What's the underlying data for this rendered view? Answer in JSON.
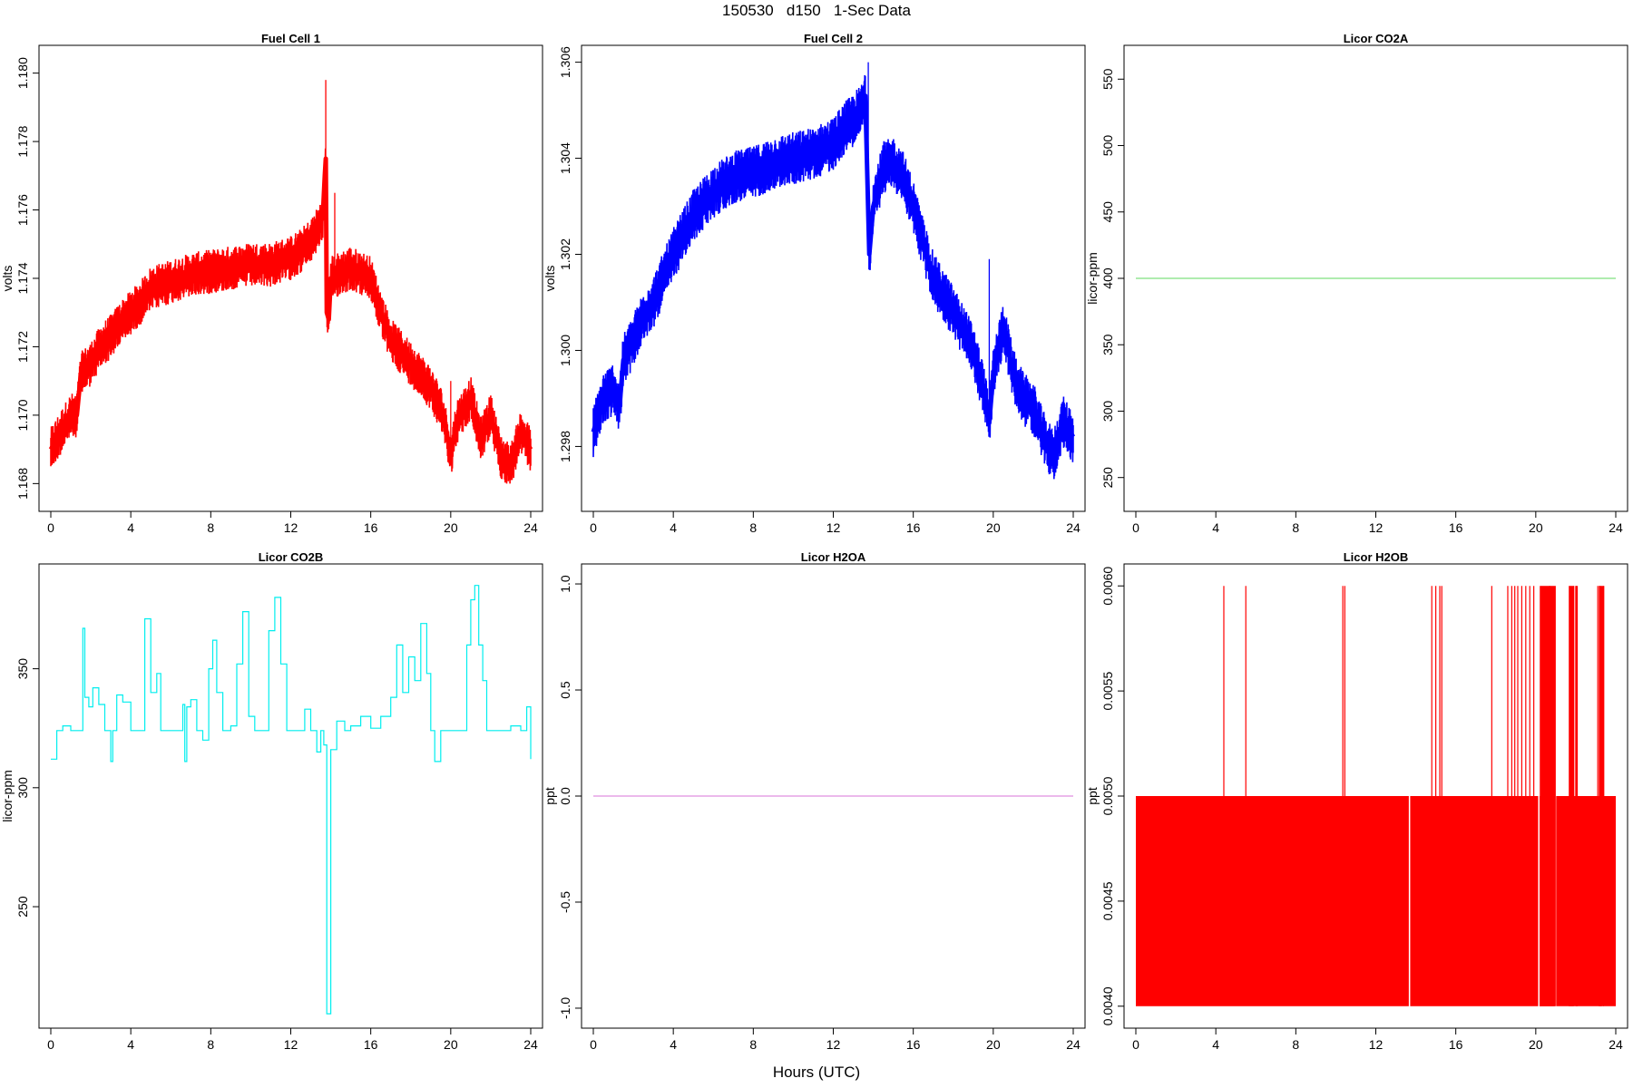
{
  "header": {
    "title": "150530   d150   1-Sec Data"
  },
  "footer": {
    "xlabel": "Hours (UTC)"
  },
  "chart_data": [
    {
      "type": "line",
      "title": "Fuel Cell 1",
      "ylabel": "volts",
      "color": "#ff0000",
      "xlim": [
        0,
        24
      ],
      "ylim": [
        1.1674,
        1.1806
      ],
      "xticks": [
        0,
        4,
        8,
        12,
        16,
        20,
        24
      ],
      "yticks": [
        1.168,
        1.17,
        1.172,
        1.174,
        1.176,
        1.178,
        1.18
      ],
      "ytick_labels": [
        "1.168",
        "1.170",
        "1.172",
        "1.174",
        "1.176",
        "1.178",
        "1.180"
      ],
      "band": 0.00065,
      "x": [
        0,
        0.5,
        1,
        1.3,
        1.5,
        2,
        2.5,
        3,
        3.5,
        4,
        4.5,
        5,
        6,
        7,
        8,
        9,
        10,
        11,
        12,
        12.5,
        13,
        13.4,
        13.6,
        13.7,
        13.75,
        13.8,
        13.9,
        14,
        15,
        16,
        16.5,
        17,
        18,
        19,
        19.5,
        19.8,
        20,
        20.3,
        21,
        21.5,
        22,
        22.5,
        23,
        23.5,
        24
      ],
      "y": [
        1.169,
        1.1695,
        1.17,
        1.17,
        1.1712,
        1.1715,
        1.172,
        1.1723,
        1.1727,
        1.173,
        1.1733,
        1.1737,
        1.1739,
        1.1741,
        1.1742,
        1.1743,
        1.1744,
        1.1744,
        1.1746,
        1.1748,
        1.1751,
        1.1755,
        1.1758,
        1.177,
        1.1775,
        1.173,
        1.1728,
        1.174,
        1.1743,
        1.174,
        1.173,
        1.1722,
        1.1715,
        1.1708,
        1.1702,
        1.1695,
        1.1688,
        1.1698,
        1.1705,
        1.1693,
        1.17,
        1.1688,
        1.1685,
        1.1695,
        1.169
      ],
      "spikes": [
        [
          13.75,
          1.1798
        ],
        [
          14.2,
          1.1765
        ],
        [
          20.0,
          1.171
        ]
      ]
    },
    {
      "type": "line",
      "title": "Fuel Cell 2",
      "ylabel": "volts",
      "color": "#0000ff",
      "xlim": [
        0,
        24
      ],
      "ylim": [
        1.2968,
        1.3062
      ],
      "xticks": [
        0,
        4,
        8,
        12,
        16,
        20,
        24
      ],
      "yticks": [
        1.298,
        1.3,
        1.302,
        1.304,
        1.306
      ],
      "ytick_labels": [
        "1.298",
        "1.300",
        "1.302",
        "1.304",
        "1.306"
      ],
      "band": 0.00055,
      "x": [
        0,
        0.5,
        1,
        1.3,
        1.5,
        2,
        2.5,
        3,
        3.5,
        4,
        4.5,
        5,
        6,
        7,
        8,
        9,
        10,
        11,
        12,
        12.5,
        13,
        13.4,
        13.6,
        13.8,
        14,
        14.5,
        15,
        15.5,
        16,
        16.5,
        17,
        18,
        19,
        19.5,
        19.8,
        20,
        20.5,
        21,
        21.5,
        22,
        22.5,
        23,
        23.5,
        24
      ],
      "y": [
        1.2983,
        1.299,
        1.2992,
        1.2988,
        1.2998,
        1.3002,
        1.3007,
        1.301,
        1.3015,
        1.302,
        1.3024,
        1.3028,
        1.3033,
        1.3036,
        1.3037,
        1.3039,
        1.304,
        1.3041,
        1.3043,
        1.3046,
        1.3048,
        1.305,
        1.3053,
        1.302,
        1.303,
        1.3038,
        1.3039,
        1.3036,
        1.303,
        1.3022,
        1.3015,
        1.3008,
        1.3,
        1.2992,
        1.2985,
        1.2995,
        1.3005,
        1.2995,
        1.299,
        1.2988,
        1.2982,
        1.2978,
        1.2985,
        1.2982
      ],
      "spikes": [
        [
          13.75,
          1.306
        ],
        [
          19.8,
          1.3019
        ]
      ]
    },
    {
      "type": "line",
      "title": "Licor CO2A",
      "ylabel": "licor-ppm",
      "color": "#7fe07f",
      "xlim": [
        0,
        24
      ],
      "ylim": [
        230,
        570
      ],
      "xticks": [
        0,
        4,
        8,
        12,
        16,
        20,
        24
      ],
      "yticks": [
        250,
        300,
        350,
        400,
        450,
        500,
        550
      ],
      "ytick_labels": [
        "250",
        "300",
        "350",
        "400",
        "450",
        "500",
        "550"
      ],
      "band": 0,
      "x": [
        0,
        24
      ],
      "y": [
        400,
        400
      ],
      "spikes": []
    },
    {
      "type": "line",
      "title": "Licor CO2B",
      "ylabel": "licor-ppm",
      "color": "#00eeee",
      "xlim": [
        0,
        24
      ],
      "ylim": [
        202,
        391
      ],
      "xticks": [
        0,
        4,
        8,
        12,
        16,
        20,
        24
      ],
      "yticks": [
        250,
        300,
        350
      ],
      "ytick_labels": [
        "250",
        "300",
        "350"
      ],
      "band": 0,
      "x": [
        0,
        0.3,
        0.6,
        1.0,
        1.5,
        1.6,
        1.7,
        1.9,
        2.1,
        2.4,
        2.7,
        2.9,
        3.0,
        3.1,
        3.3,
        3.6,
        4.0,
        4.5,
        4.7,
        5.0,
        5.3,
        5.5,
        5.8,
        6.2,
        6.6,
        6.7,
        6.8,
        7.0,
        7.3,
        7.6,
        7.9,
        8.1,
        8.3,
        8.6,
        9.0,
        9.3,
        9.6,
        9.9,
        10.2,
        10.5,
        10.9,
        11.2,
        11.5,
        11.8,
        12.1,
        12.4,
        12.7,
        13.0,
        13.3,
        13.5,
        13.65,
        13.8,
        14.0,
        14.3,
        14.7,
        15.0,
        15.5,
        16.0,
        16.5,
        17.0,
        17.3,
        17.6,
        17.9,
        18.2,
        18.5,
        18.8,
        19.0,
        19.2,
        19.5,
        20.0,
        20.5,
        20.8,
        21.0,
        21.2,
        21.4,
        21.6,
        21.8,
        22.0,
        22.5,
        23.0,
        23.5,
        23.8,
        24
      ],
      "y": [
        312,
        324,
        326,
        324,
        324,
        367,
        338,
        334,
        342,
        335,
        324,
        324,
        311,
        324,
        339,
        336,
        324,
        324,
        371,
        340,
        348,
        324,
        324,
        324,
        335,
        311,
        334,
        337,
        324,
        320,
        350,
        362,
        340,
        324,
        326,
        352,
        374,
        330,
        324,
        324,
        366,
        380,
        352,
        324,
        324,
        324,
        333,
        324,
        315,
        324,
        318,
        205,
        316,
        328,
        324,
        326,
        330,
        325,
        330,
        338,
        360,
        340,
        355,
        345,
        369,
        348,
        324,
        311,
        324,
        324,
        324,
        360,
        379,
        385,
        360,
        345,
        324,
        324,
        324,
        326,
        324,
        334,
        312
      ],
      "spikes": []
    },
    {
      "type": "line",
      "title": "Licor H2OA",
      "ylabel": "ppt",
      "color": "#e08fe0",
      "xlim": [
        0,
        24
      ],
      "ylim": [
        -1.06,
        1.06
      ],
      "xticks": [
        0,
        4,
        8,
        12,
        16,
        20,
        24
      ],
      "yticks": [
        -1.0,
        -0.5,
        0.0,
        0.5,
        1.0
      ],
      "ytick_labels": [
        "-1.0",
        "-0.5",
        "0.0",
        "0.5",
        "1.0"
      ],
      "band": 0,
      "x": [
        0,
        24
      ],
      "y": [
        0,
        0
      ],
      "spikes": []
    },
    {
      "type": "bar",
      "title": "Licor H2OB",
      "ylabel": "ppt",
      "color": "#ff0000",
      "xlim": [
        0,
        24
      ],
      "ylim": [
        0.00393,
        0.00607
      ],
      "xticks": [
        0,
        4,
        8,
        12,
        16,
        20,
        24
      ],
      "yticks": [
        0.004,
        0.0045,
        0.005,
        0.0055,
        0.006
      ],
      "ytick_labels": [
        "0.0040",
        "0.0045",
        "0.0050",
        "0.0055",
        "0.0060"
      ],
      "base_value": 0.004,
      "base_top": 0.005,
      "base_range": [
        0,
        24
      ],
      "gaps": [
        [
          13.65,
          13.72
        ],
        [
          20.12,
          20.14
        ],
        [
          20.95,
          21.0
        ],
        [
          23.3,
          23.33
        ]
      ],
      "spike_value": 0.006,
      "spikes_x": [
        4.4,
        5.5,
        10.35,
        10.45,
        14.8,
        15.0,
        15.2,
        15.3,
        17.8,
        18.6,
        18.8,
        18.95,
        19.1,
        19.3,
        19.5,
        19.7,
        19.9,
        20.7,
        21.9,
        22.0,
        23.1,
        23.2,
        23.4
      ],
      "spike_blocks": [
        [
          20.2,
          21.0
        ],
        [
          21.65,
          21.9
        ],
        [
          22.0,
          22.1
        ],
        [
          23.15,
          23.4
        ]
      ]
    }
  ]
}
